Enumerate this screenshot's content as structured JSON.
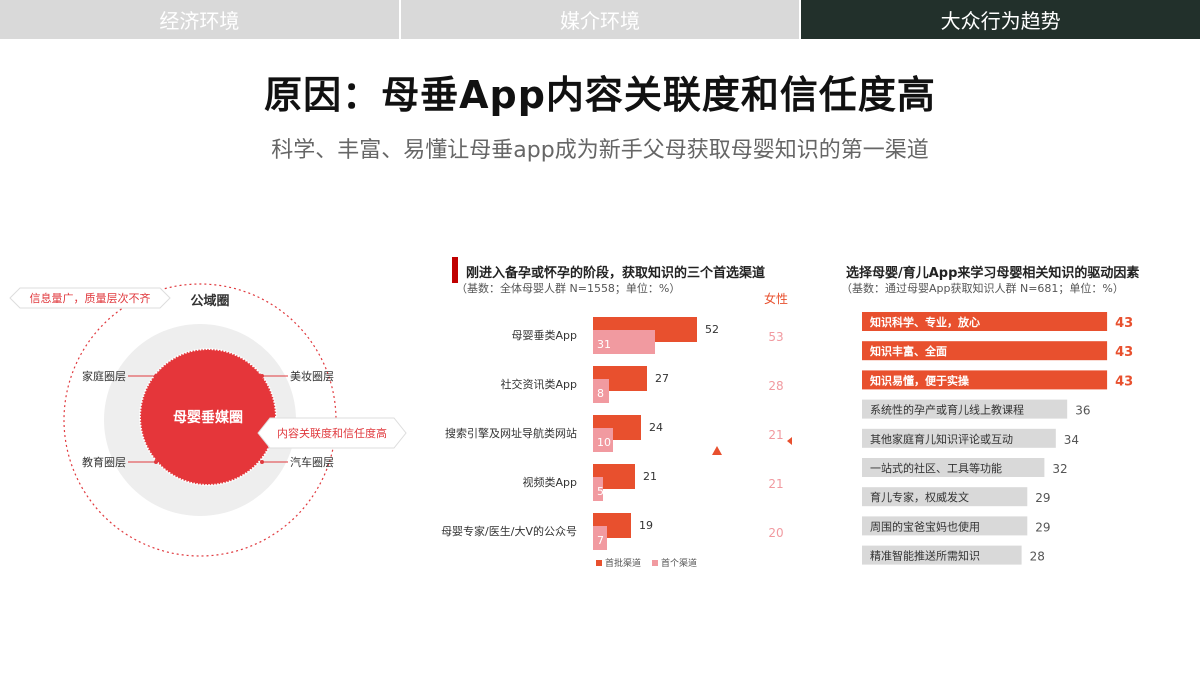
{
  "tabs": [
    {
      "label": "经济环境",
      "active": false
    },
    {
      "label": "媒介环境",
      "active": false
    },
    {
      "label": "大众行为趋势",
      "active": true
    }
  ],
  "title": "原因：母垂App内容关联度和信任度高",
  "subtitle": "科学、丰富、易懂让母垂app成为新手父母获取母婴知识的第一渠道",
  "diagram": {
    "outer_label": "公域圈",
    "center_label": "母婴垂媒圈",
    "left_callout": "信息量广，质量层次不齐",
    "right_callout": "内容关联度和信任度高",
    "nodes": {
      "top_left": "家庭圈层",
      "top_right": "美妆圈层",
      "bottom_left": "教育圈层",
      "bottom_right": "汽车圈层"
    },
    "colors": {
      "core": "#e5363a",
      "ring": "#eeeeee",
      "dash": "#e0393e"
    }
  },
  "chart_data": [
    {
      "type": "bar",
      "title": "刚进入备孕或怀孕的阶段，获取知识的三个首选渠道",
      "base_note": "（基数：全体母婴人群 N=1558；单位：%）",
      "categories": [
        "母婴垂类App",
        "社交资讯类App",
        "搜索引擎及网址导航类网站",
        "视频类App",
        "母婴专家/医生/大V的公众号"
      ],
      "series": [
        {
          "name": "首批渠道",
          "values": [
            52,
            27,
            24,
            21,
            19
          ],
          "color": "#e8502e"
        },
        {
          "name": "首个渠道",
          "values": [
            31,
            8,
            10,
            5,
            7
          ],
          "color": "#f19aa0"
        }
      ],
      "female_header": "女性",
      "female_values": [
        53,
        28,
        21,
        21,
        20
      ],
      "legend": [
        "首批渠道",
        "首个渠道"
      ],
      "legend_position": "bottom"
    },
    {
      "type": "bar",
      "title": "选择母婴/育儿App来学习母婴相关知识的驱动因素",
      "base_note": "（基数：通过母婴App获取知识人群 N=681；单位：%）",
      "categories": [
        "知识科学、专业，放心",
        "知识丰富、全面",
        "知识易懂，便于实操",
        "系统性的孕产或育儿线上教课程",
        "其他家庭育儿知识评论或互动",
        "一站式的社区、工具等功能",
        "育儿专家，权威发文",
        "周围的宝爸宝妈也使用",
        "精准智能推送所需知识"
      ],
      "values": [
        43,
        43,
        43,
        36,
        34,
        32,
        29,
        29,
        28
      ],
      "highlight_count": 3,
      "colors": {
        "highlight": "#e8502e",
        "normal": "#d9d9d9"
      }
    }
  ]
}
